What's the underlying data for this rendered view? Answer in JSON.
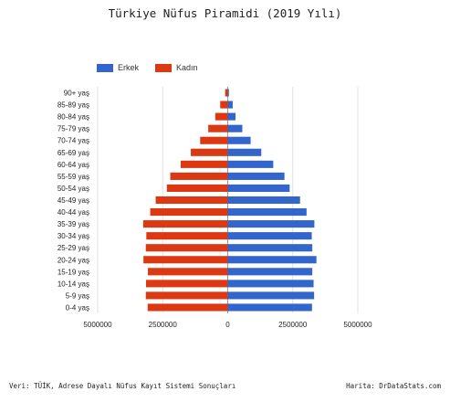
{
  "chart_data": {
    "type": "bar",
    "orientation": "horizontal-diverging",
    "title": "Türkiye Nüfus Piramidi (2019 Yılı)",
    "categories": [
      "90+ yaş",
      "85-89 yaş",
      "80-84 yaş",
      "75-79 yaş",
      "70-74 yaş",
      "65-69 yaş",
      "60-64 yaş",
      "55-59 yaş",
      "50-54 yaş",
      "45-49 yaş",
      "40-44 yaş",
      "35-39 yaş",
      "30-34 yaş",
      "25-29 yaş",
      "20-24 yaş",
      "15-19 yaş",
      "10-14 yaş",
      "5-9 yaş",
      "0-4 yaş"
    ],
    "series": [
      {
        "name": "Erkek",
        "color": "#3366cc",
        "values": [
          45000,
          190000,
          300000,
          560000,
          880000,
          1290000,
          1750000,
          2180000,
          2380000,
          2780000,
          3030000,
          3330000,
          3230000,
          3250000,
          3410000,
          3250000,
          3300000,
          3320000,
          3240000
        ]
      },
      {
        "name": "Kadın",
        "color": "#dc3912",
        "values": [
          100000,
          290000,
          480000,
          750000,
          1060000,
          1420000,
          1810000,
          2210000,
          2340000,
          2770000,
          2980000,
          3250000,
          3130000,
          3150000,
          3240000,
          3070000,
          3140000,
          3150000,
          3080000
        ]
      }
    ],
    "xtick_labels": [
      "5000000",
      "2500000",
      "0",
      "2500000",
      "5000000"
    ],
    "xlim": [
      -5000000,
      5000000
    ],
    "grid": true,
    "legend_position": "top-left"
  },
  "legend": [
    {
      "label": "Erkek",
      "color": "#3366cc"
    },
    {
      "label": "Kadın",
      "color": "#dc3912"
    }
  ],
  "footer": {
    "source": "Veri: TÜİK, Adrese Dayalı Nüfus Kayıt Sistemi Sonuçları",
    "credit": "Harita: DrDataStats.com"
  }
}
